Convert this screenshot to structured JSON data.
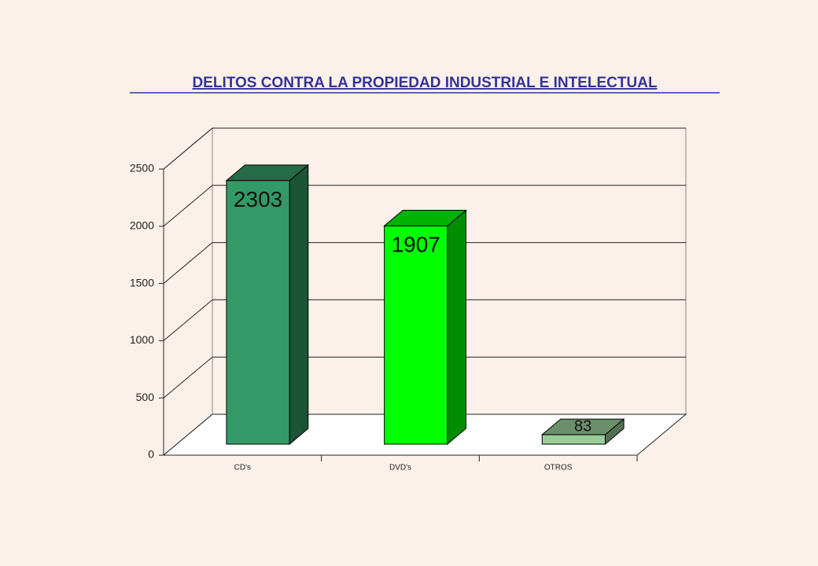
{
  "chart_data": {
    "type": "bar3d",
    "title": "DELITOS CONTRA LA PROPIEDAD INDUSTRIAL E INTELECTUAL",
    "categories": [
      "CD's",
      "DVD's",
      "OTROS"
    ],
    "values": [
      2303,
      1907,
      83
    ],
    "colors": [
      "#339966",
      "#00ff00",
      "#99cc99"
    ],
    "ylim": [
      0,
      2500
    ],
    "yticks": [
      0,
      500,
      1000,
      1500,
      2000,
      2500
    ],
    "grid": true
  }
}
